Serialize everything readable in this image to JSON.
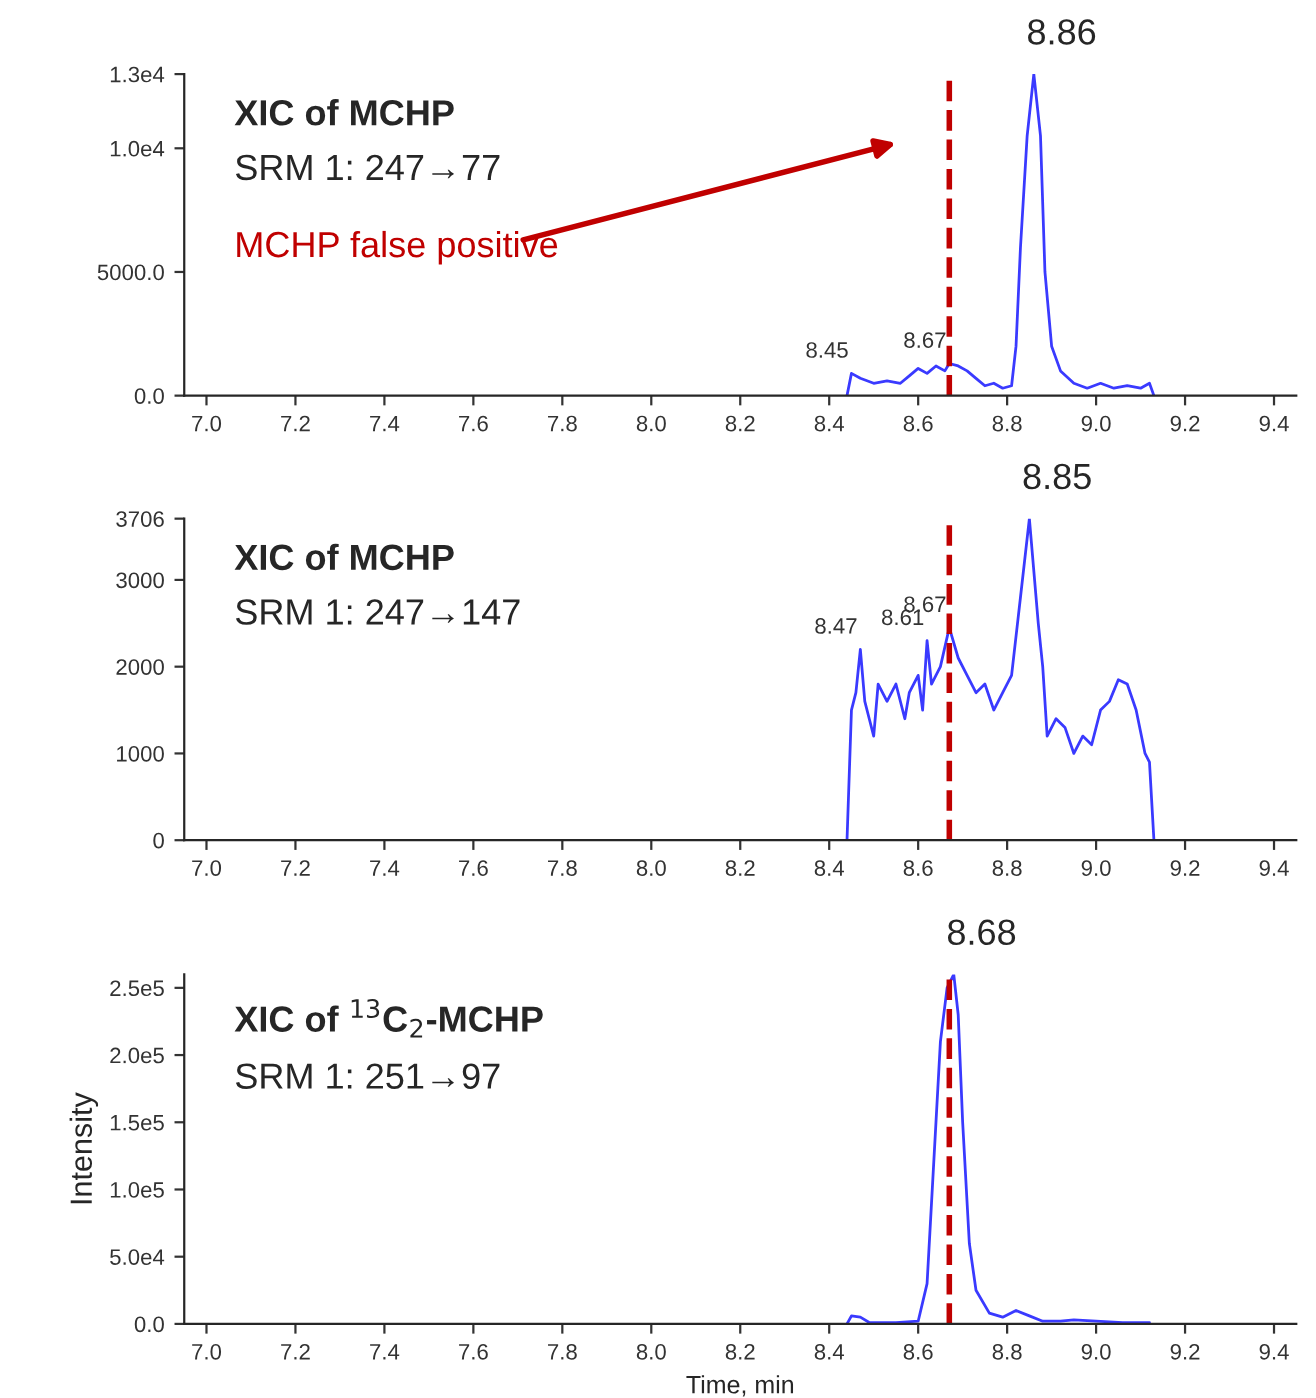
{
  "chart_data": [
    {
      "type": "line",
      "title": "XIC of MCHP",
      "subtitle": "SRM 1: 247→77",
      "xlim": [
        6.95,
        9.45
      ],
      "xticks": [
        {
          "value": 7.0,
          "label": "7.0"
        },
        {
          "value": 7.2,
          "label": "7.2"
        },
        {
          "value": 7.4,
          "label": "7.4"
        },
        {
          "value": 7.6,
          "label": "7.6"
        },
        {
          "value": 7.8,
          "label": "7.8"
        },
        {
          "value": 8.0,
          "label": "8.0"
        },
        {
          "value": 8.2,
          "label": "8.2"
        },
        {
          "value": 8.4,
          "label": "8.4"
        },
        {
          "value": 8.6,
          "label": "8.6"
        },
        {
          "value": 8.8,
          "label": "8.8"
        },
        {
          "value": 9.0,
          "label": "9.0"
        },
        {
          "value": 9.2,
          "label": "9.2"
        },
        {
          "value": 9.4,
          "label": "9.4"
        }
      ],
      "ylim": [
        0,
        13000
      ],
      "yticks": [
        {
          "value": 0,
          "label": "0.0"
        },
        {
          "value": 5000,
          "label": "5000.0"
        },
        {
          "value": 10000,
          "label": "1.0e4"
        },
        {
          "value": 13000,
          "label": "1.3e4"
        }
      ],
      "series": [
        {
          "color": "#3a3aff",
          "x": [
            8.44,
            8.45,
            8.47,
            8.5,
            8.53,
            8.56,
            8.58,
            8.6,
            8.62,
            8.64,
            8.66,
            8.67,
            8.69,
            8.71,
            8.73,
            8.75,
            8.77,
            8.79,
            8.81,
            8.82,
            8.83,
            8.845,
            8.86,
            8.875,
            8.885,
            8.9,
            8.92,
            8.95,
            8.98,
            9.01,
            9.04,
            9.07,
            9.1,
            9.12,
            9.13
          ],
          "values": [
            0,
            900,
            700,
            500,
            600,
            500,
            800,
            1100,
            900,
            1200,
            1000,
            1300,
            1200,
            1000,
            700,
            400,
            500,
            300,
            400,
            2000,
            6000,
            10500,
            13000,
            10500,
            5000,
            2000,
            1000,
            500,
            300,
            500,
            300,
            400,
            300,
            500,
            0
          ]
        }
      ],
      "ref_lines": [
        {
          "axis": "x",
          "value": 8.67,
          "color": "#c00000",
          "line_style": "dashed"
        }
      ],
      "annotations": [
        {
          "text": "8.86",
          "x": 8.86,
          "y": 13000
        },
        {
          "text": "8.45",
          "x": 8.45,
          "y": 900
        },
        {
          "text": "8.67",
          "x": 8.67,
          "y": 1300
        },
        "MCHP false positive"
      ]
    },
    {
      "type": "line",
      "title": "XIC of MCHP",
      "subtitle": "SRM 1: 247→147",
      "xlim": [
        6.95,
        9.45
      ],
      "xticks": [
        {
          "value": 7.0,
          "label": "7.0"
        },
        {
          "value": 7.2,
          "label": "7.2"
        },
        {
          "value": 7.4,
          "label": "7.4"
        },
        {
          "value": 7.6,
          "label": "7.6"
        },
        {
          "value": 7.8,
          "label": "7.8"
        },
        {
          "value": 8.0,
          "label": "8.0"
        },
        {
          "value": 8.2,
          "label": "8.2"
        },
        {
          "value": 8.4,
          "label": "8.4"
        },
        {
          "value": 8.6,
          "label": "8.6"
        },
        {
          "value": 8.8,
          "label": "8.8"
        },
        {
          "value": 9.0,
          "label": "9.0"
        },
        {
          "value": 9.2,
          "label": "9.2"
        },
        {
          "value": 9.4,
          "label": "9.4"
        }
      ],
      "ylim": [
        0,
        3706
      ],
      "yticks": [
        0,
        1000,
        2000,
        3000,
        3706
      ],
      "series": [
        {
          "color": "#3a3aff",
          "x": [
            8.44,
            8.45,
            8.46,
            8.47,
            8.48,
            8.49,
            8.5,
            8.51,
            8.53,
            8.55,
            8.57,
            8.58,
            8.6,
            8.61,
            8.62,
            8.63,
            8.65,
            8.67,
            8.69,
            8.71,
            8.73,
            8.75,
            8.77,
            8.79,
            8.81,
            8.83,
            8.85,
            8.87,
            8.88,
            8.89,
            8.91,
            8.93,
            8.95,
            8.97,
            8.99,
            9.01,
            9.03,
            9.05,
            9.07,
            9.09,
            9.11,
            9.12,
            9.13
          ],
          "values": [
            0,
            1500,
            1700,
            2200,
            1600,
            1400,
            1200,
            1800,
            1600,
            1800,
            1400,
            1700,
            1900,
            1500,
            2300,
            1800,
            2000,
            2450,
            2100,
            1900,
            1700,
            1800,
            1500,
            1700,
            1900,
            2800,
            3706,
            2500,
            2000,
            1200,
            1400,
            1300,
            1000,
            1200,
            1100,
            1500,
            1600,
            1850,
            1800,
            1500,
            1000,
            900,
            0
          ]
        }
      ],
      "ref_lines": [
        {
          "axis": "x",
          "value": 8.67,
          "color": "#c00000",
          "line_style": "dashed"
        }
      ],
      "annotations": [
        {
          "text": "8.85",
          "x": 8.85,
          "y": 3706
        },
        {
          "text": "8.47",
          "x": 8.47,
          "y": 2200
        },
        {
          "text": "8.61",
          "x": 8.62,
          "y": 2300
        },
        {
          "text": "8.67",
          "x": 8.67,
          "y": 2450
        }
      ]
    },
    {
      "type": "line",
      "title": "XIC of $^{13}$C$_{2}$-MCHP",
      "subtitle": "SRM 1: 251→97",
      "xlabel": "Time, min",
      "ylabel": "Intensity",
      "xlim": [
        6.95,
        9.45
      ],
      "xticks": [
        {
          "value": 7.0,
          "label": "7.0"
        },
        {
          "value": 7.2,
          "label": "7.2"
        },
        {
          "value": 7.4,
          "label": "7.4"
        },
        {
          "value": 7.6,
          "label": "7.6"
        },
        {
          "value": 7.8,
          "label": "7.8"
        },
        {
          "value": 8.0,
          "label": "8.0"
        },
        {
          "value": 8.2,
          "label": "8.2"
        },
        {
          "value": 8.4,
          "label": "8.4"
        },
        {
          "value": 8.6,
          "label": "8.6"
        },
        {
          "value": 8.8,
          "label": "8.8"
        },
        {
          "value": 9.0,
          "label": "9.0"
        },
        {
          "value": 9.2,
          "label": "9.2"
        },
        {
          "value": 9.4,
          "label": "9.4"
        }
      ],
      "ylim": [
        0,
        260000
      ],
      "yticks": [
        {
          "value": 0,
          "label": "0.0"
        },
        {
          "value": 50000,
          "label": "5.0e4"
        },
        {
          "value": 100000,
          "label": "1.0e5"
        },
        {
          "value": 150000,
          "label": "1.5e5"
        },
        {
          "value": 200000,
          "label": "2.0e5"
        },
        {
          "value": 250000,
          "label": "2.5e5"
        }
      ],
      "series": [
        {
          "color": "#3a3aff",
          "x": [
            8.44,
            8.45,
            8.47,
            8.49,
            8.55,
            8.6,
            8.62,
            8.635,
            8.65,
            8.665,
            8.68,
            8.69,
            8.7,
            8.715,
            8.73,
            8.76,
            8.79,
            8.82,
            8.85,
            8.88,
            8.92,
            8.95,
            9.0,
            9.06,
            9.12
          ],
          "values": [
            0,
            6000,
            5000,
            1000,
            1000,
            2000,
            30000,
            120000,
            210000,
            250000,
            260000,
            230000,
            150000,
            60000,
            25000,
            8000,
            5000,
            10000,
            6000,
            2000,
            2000,
            3000,
            2000,
            1000,
            1000
          ]
        }
      ],
      "ref_lines": [
        {
          "axis": "x",
          "value": 8.67,
          "color": "#c00000",
          "line_style": "dashed"
        }
      ],
      "annotations": [
        {
          "text": "8.68",
          "x": 8.68,
          "y": 260000
        }
      ]
    }
  ]
}
